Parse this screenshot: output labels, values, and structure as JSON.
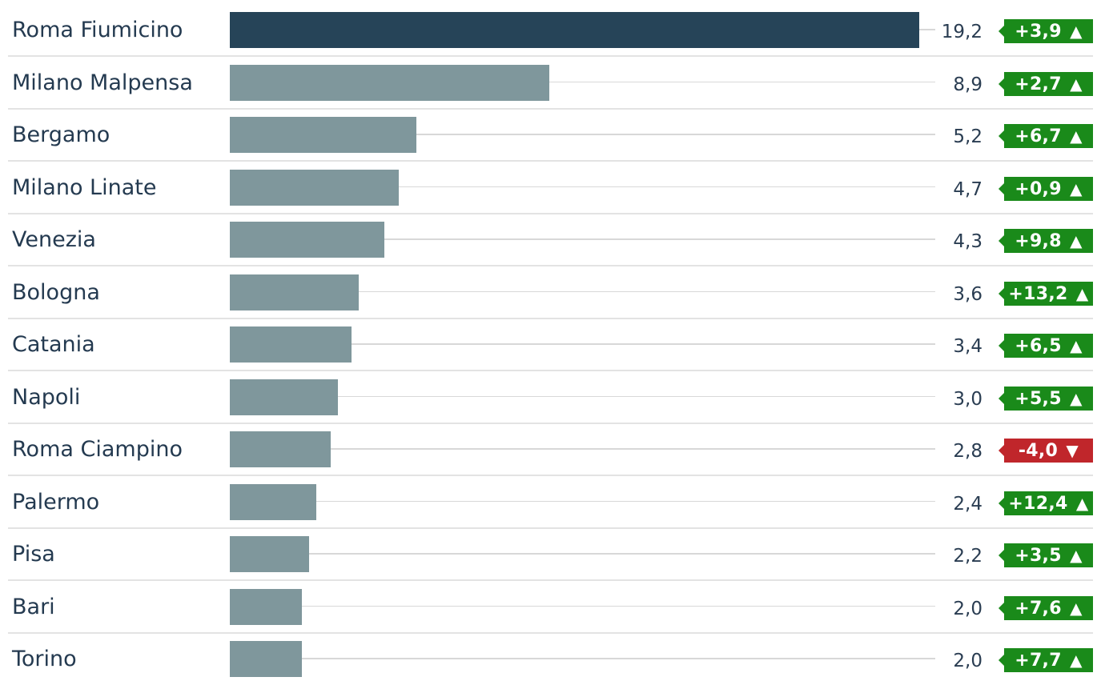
{
  "chart_data": {
    "type": "bar",
    "orientation": "horizontal",
    "categories": [
      "Roma Fiumicino",
      "Milano Malpensa",
      "Bergamo",
      "Milano Linate",
      "Venezia",
      "Bologna",
      "Catania",
      "Napoli",
      "Roma Ciampino",
      "Palermo",
      "Pisa",
      "Bari",
      "Torino"
    ],
    "values": [
      19.2,
      8.9,
      5.2,
      4.7,
      4.3,
      3.6,
      3.4,
      3.0,
      2.8,
      2.4,
      2.2,
      2.0,
      2.0
    ],
    "value_labels": [
      "19,2",
      "8,9",
      "5,2",
      "4,7",
      "4,3",
      "3,6",
      "3,4",
      "3,0",
      "2,8",
      "2,4",
      "2,2",
      "2,0",
      "2,0"
    ],
    "changes": [
      3.9,
      2.7,
      6.7,
      0.9,
      9.8,
      13.2,
      6.5,
      5.5,
      -4.0,
      12.4,
      3.5,
      7.6,
      7.7
    ],
    "change_labels": [
      "+3,9",
      "+2,7",
      "+6,7",
      "+0,9",
      "+9,8",
      "+13,2",
      "+6,5",
      "+5,5",
      "-4,0",
      "+12,4",
      "+3,5",
      "+7,6",
      "+7,7"
    ],
    "xlim": [
      0,
      19.2
    ],
    "title": "",
    "xlabel": "",
    "ylabel": "",
    "grid": false,
    "colors": {
      "highlight_bar": "#264458",
      "bar": "#7f979c",
      "positive": "#1a8a1a",
      "negative": "#c0262b"
    },
    "icons": {
      "up": "▲",
      "down": "▼"
    }
  }
}
